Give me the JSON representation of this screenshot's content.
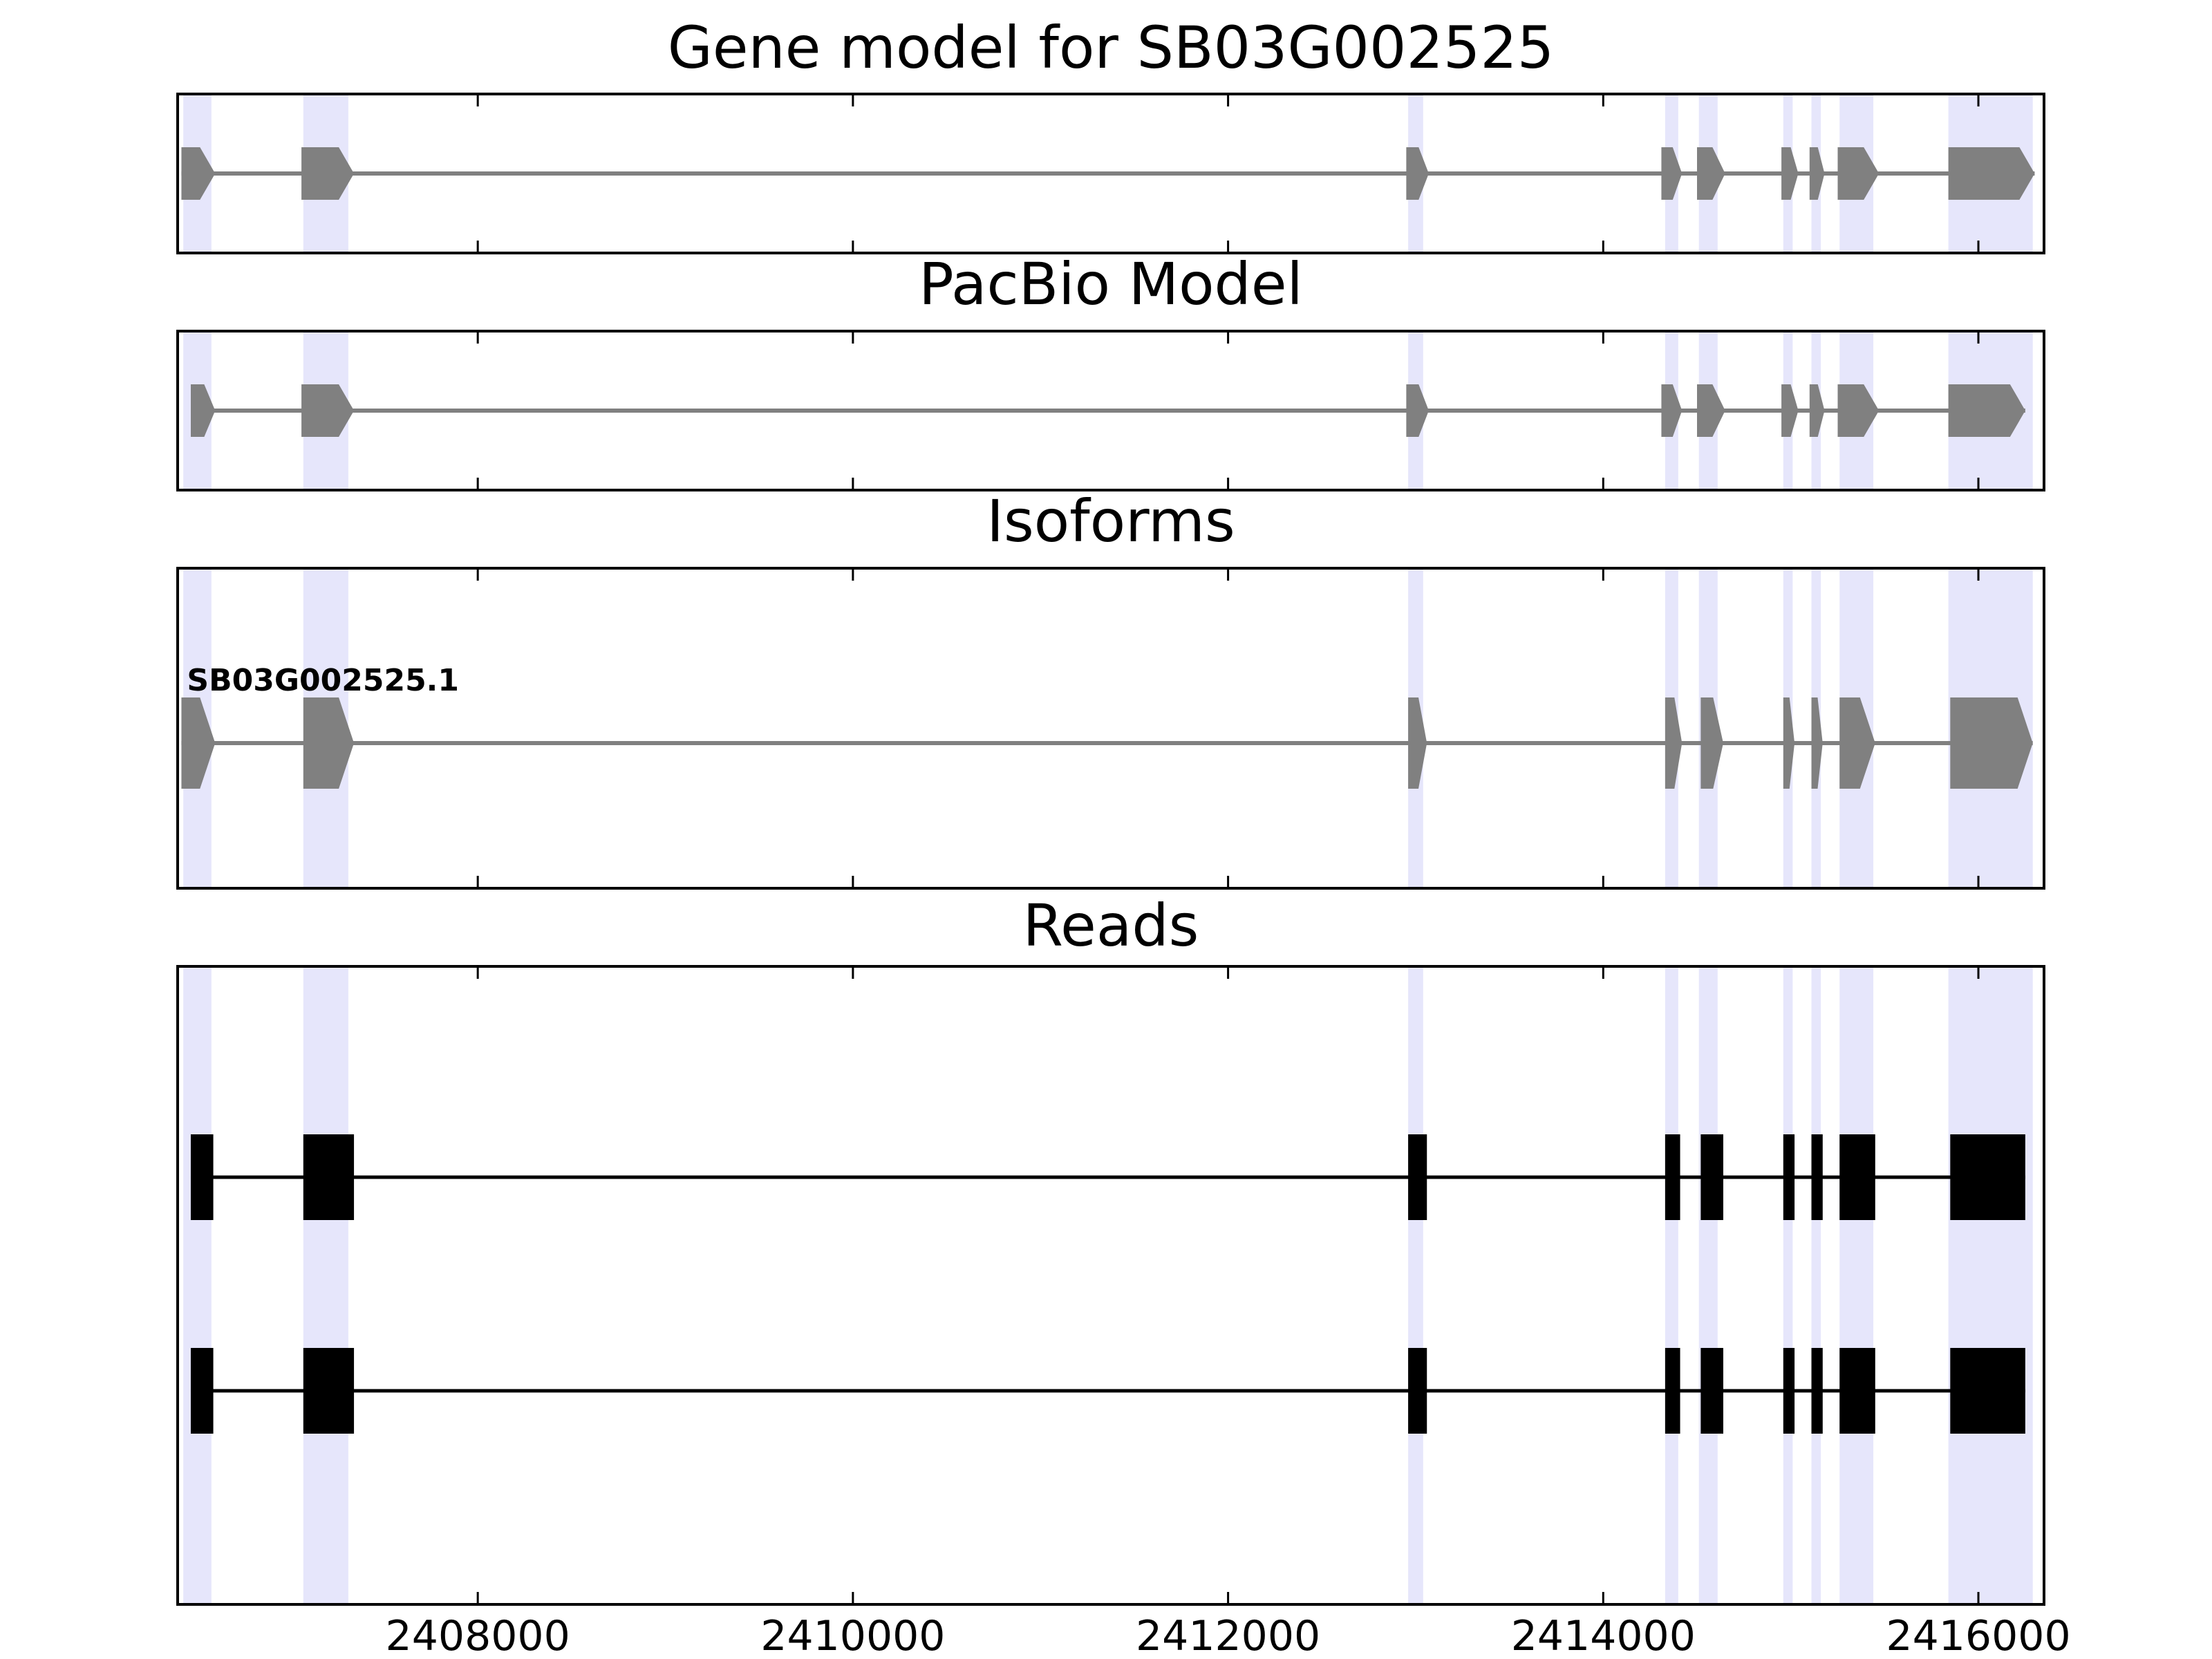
{
  "chart_data": {
    "type": "gene-track",
    "x_range": [
      2406400,
      2416350
    ],
    "x_ticks": [
      2408000,
      2410000,
      2412000,
      2414000,
      2416000
    ],
    "x_tick_labels": [
      "2408000",
      "2410000",
      "2412000",
      "2414000",
      "2416000"
    ],
    "grid": false,
    "highlight_color": "#e3e3fb",
    "exon_highlights": [
      [
        2406430,
        2406580
      ],
      [
        2407070,
        2407310
      ],
      [
        2412960,
        2413040
      ],
      [
        2414330,
        2414400
      ],
      [
        2414510,
        2414610
      ],
      [
        2414960,
        2415010
      ],
      [
        2415110,
        2415160
      ],
      [
        2415260,
        2415440
      ],
      [
        2415840,
        2416290
      ]
    ],
    "panels": [
      {
        "id": "gene-model",
        "title": "Gene model for SB03G002525",
        "color": "#808080",
        "style": "arrow",
        "models": [
          {
            "label": "",
            "exons": [
              [
                2406420,
                2406600
              ],
              [
                2407060,
                2407340
              ],
              [
                2412950,
                2413070
              ],
              [
                2414310,
                2414420
              ],
              [
                2414500,
                2414650
              ],
              [
                2414950,
                2415040
              ],
              [
                2415100,
                2415180
              ],
              [
                2415250,
                2415470
              ],
              [
                2415840,
                2416300
              ]
            ]
          }
        ]
      },
      {
        "id": "pacbio-model",
        "title": "PacBio Model",
        "color": "#808080",
        "style": "arrow",
        "models": [
          {
            "label": "",
            "exons": [
              [
                2406470,
                2406600
              ],
              [
                2407060,
                2407340
              ],
              [
                2412950,
                2413070
              ],
              [
                2414310,
                2414420
              ],
              [
                2414500,
                2414650
              ],
              [
                2414950,
                2415040
              ],
              [
                2415100,
                2415180
              ],
              [
                2415250,
                2415470
              ],
              [
                2415840,
                2416250
              ]
            ]
          }
        ]
      },
      {
        "id": "isoforms",
        "title": "Isoforms",
        "color": "#808080",
        "style": "arrow",
        "models": [
          {
            "label": "SB03G002525.1",
            "exons": [
              [
                2406420,
                2406600
              ],
              [
                2407070,
                2407340
              ],
              [
                2412960,
                2413060
              ],
              [
                2414330,
                2414420
              ],
              [
                2414520,
                2414640
              ],
              [
                2414960,
                2415020
              ],
              [
                2415110,
                2415170
              ],
              [
                2415260,
                2415450
              ],
              [
                2415850,
                2416290
              ]
            ]
          }
        ]
      },
      {
        "id": "reads",
        "title": "Reads",
        "color": "#000000",
        "style": "box",
        "models": [
          {
            "label": "",
            "exons": [
              [
                2406470,
                2406590
              ],
              [
                2407070,
                2407340
              ],
              [
                2412960,
                2413060
              ],
              [
                2414330,
                2414410
              ],
              [
                2414520,
                2414640
              ],
              [
                2414960,
                2415020
              ],
              [
                2415110,
                2415170
              ],
              [
                2415260,
                2415450
              ],
              [
                2415850,
                2416250
              ]
            ]
          },
          {
            "label": "",
            "exons": [
              [
                2406470,
                2406590
              ],
              [
                2407070,
                2407340
              ],
              [
                2412960,
                2413060
              ],
              [
                2414330,
                2414410
              ],
              [
                2414520,
                2414640
              ],
              [
                2414960,
                2415020
              ],
              [
                2415110,
                2415170
              ],
              [
                2415260,
                2415450
              ],
              [
                2415850,
                2416250
              ]
            ]
          }
        ]
      }
    ]
  }
}
